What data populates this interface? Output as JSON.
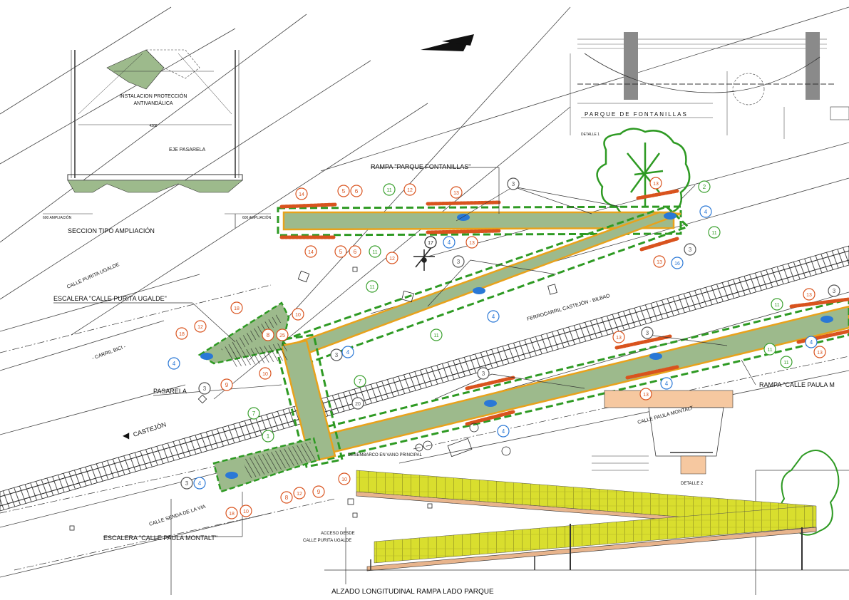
{
  "labels": {
    "section_title": "SECCION TIPO AMPLIACIÓN",
    "antivandal": "INSTALACION PROTECCIÓN ANTIVANDÁLICA",
    "antivandal_1": "INSTALACION PROTECCIÓN",
    "antivandal_2": "ANTIVANDÁLICA",
    "eje_pasarela": "EJE PASARELA",
    "ampliacion_left": "600 AMPLIACIÓN",
    "ampliacion_right": "600 AMPLIACIÓN",
    "ramp_park": "RAMPA \"PARQUE FONTANILLAS\"",
    "ramp_paula": "RAMPA \"CALLE PAULA M",
    "stair_purita": "ESCALERA \"CALLE PURITA UGALDE\"",
    "stair_paula": "ESCALERA \"CALLE PAULA MONTALT\"",
    "pasarela": "PASARELA",
    "calle_purita": "CALLE PURITA UGALDE",
    "carril_bici": "- CARRIL BICI -",
    "ferrocarril": "FERROCARRIL CASTEJÓN - BILBAO",
    "castejon": "CASTEJÓN",
    "senda_via": "CALLE SENDA DE LA VIA",
    "parque": "PARQUE DE FONTANILLAS",
    "desembarco": "DESEMBARCO EN VANO PRINCIPAL",
    "acceso_1": "ACCESO DESDE",
    "acceso_2": "CALLE PURITA UGALDE",
    "calle_paula_montalt": "CALLE PAULA MONTALT",
    "detalle2": "DETALLE 2",
    "detalle1": "DETALLE 1",
    "alzado": "ALZADO LONGITUDINAL RAMPA LADO PARQUE"
  },
  "markers": [
    {
      "id": "m14a",
      "n": "14",
      "c": "orange"
    },
    {
      "id": "m5a",
      "n": "5",
      "c": "orange"
    },
    {
      "id": "m6a",
      "n": "6",
      "c": "orange"
    },
    {
      "id": "m11a",
      "n": "11",
      "c": "green"
    },
    {
      "id": "m12a",
      "n": "12",
      "c": "orange"
    },
    {
      "id": "m13a",
      "n": "13",
      "c": "orange"
    },
    {
      "id": "m3a",
      "n": "3",
      "c": "gray"
    },
    {
      "id": "m13b",
      "n": "13",
      "c": "orange"
    },
    {
      "id": "m2",
      "n": "2",
      "c": "green"
    },
    {
      "id": "m4a",
      "n": "4",
      "c": "blue"
    },
    {
      "id": "m11b",
      "n": "11",
      "c": "green"
    },
    {
      "id": "m3b",
      "n": "3",
      "c": "gray"
    },
    {
      "id": "m13c",
      "n": "13",
      "c": "orange"
    },
    {
      "id": "m16",
      "n": "16",
      "c": "blue"
    },
    {
      "id": "m14b",
      "n": "14",
      "c": "orange"
    },
    {
      "id": "m5b",
      "n": "5",
      "c": "orange"
    },
    {
      "id": "m6b",
      "n": "6",
      "c": "orange"
    },
    {
      "id": "m11c",
      "n": "11",
      "c": "green"
    },
    {
      "id": "m12b",
      "n": "12",
      "c": "orange"
    },
    {
      "id": "m17",
      "n": "17",
      "c": "dark"
    },
    {
      "id": "m4b",
      "n": "4",
      "c": "blue"
    },
    {
      "id": "m13d",
      "n": "13",
      "c": "orange"
    },
    {
      "id": "m3c",
      "n": "3",
      "c": "gray"
    },
    {
      "id": "m11d",
      "n": "11",
      "c": "green"
    },
    {
      "id": "m4c",
      "n": "4",
      "c": "blue"
    },
    {
      "id": "m11e",
      "n": "11",
      "c": "green"
    },
    {
      "id": "m18a",
      "n": "18",
      "c": "orange"
    },
    {
      "id": "m10a",
      "n": "10",
      "c": "orange"
    },
    {
      "id": "m12c",
      "n": "12",
      "c": "orange"
    },
    {
      "id": "m8a",
      "n": "8",
      "c": "orange"
    },
    {
      "id": "m25",
      "n": "25",
      "c": "orange"
    },
    {
      "id": "m18b",
      "n": "18",
      "c": "orange"
    },
    {
      "id": "m4d",
      "n": "4",
      "c": "blue"
    },
    {
      "id": "m10b",
      "n": "10",
      "c": "orange"
    },
    {
      "id": "m9a",
      "n": "9",
      "c": "orange"
    },
    {
      "id": "m3d",
      "n": "3",
      "c": "gray"
    },
    {
      "id": "m3e",
      "n": "3",
      "c": "gray"
    },
    {
      "id": "m4e",
      "n": "4",
      "c": "blue"
    },
    {
      "id": "m7a",
      "n": "7",
      "c": "green"
    },
    {
      "id": "m20",
      "n": "20",
      "c": "gray"
    },
    {
      "id": "m7b",
      "n": "7",
      "c": "green"
    },
    {
      "id": "m1",
      "n": "1",
      "c": "green"
    },
    {
      "id": "m3f",
      "n": "3",
      "c": "gray"
    },
    {
      "id": "m4f",
      "n": "4",
      "c": "blue"
    },
    {
      "id": "m8b",
      "n": "8",
      "c": "orange"
    },
    {
      "id": "m12d",
      "n": "12",
      "c": "orange"
    },
    {
      "id": "m9b",
      "n": "9",
      "c": "orange"
    },
    {
      "id": "m18c",
      "n": "18",
      "c": "orange"
    },
    {
      "id": "m10c",
      "n": "10",
      "c": "orange"
    },
    {
      "id": "m10d",
      "n": "10",
      "c": "orange"
    },
    {
      "id": "m3g",
      "n": "3",
      "c": "gray"
    },
    {
      "id": "m4g",
      "n": "4",
      "c": "blue"
    },
    {
      "id": "m13e",
      "n": "13",
      "c": "orange"
    },
    {
      "id": "m3h",
      "n": "3",
      "c": "gray"
    },
    {
      "id": "m11f",
      "n": "11",
      "c": "green"
    },
    {
      "id": "m4h",
      "n": "4",
      "c": "blue"
    },
    {
      "id": "m13f",
      "n": "13",
      "c": "orange"
    },
    {
      "id": "m13g",
      "n": "13",
      "c": "orange"
    },
    {
      "id": "m3i",
      "n": "3",
      "c": "gray"
    },
    {
      "id": "m11g",
      "n": "11",
      "c": "green"
    },
    {
      "id": "m4i",
      "n": "4",
      "c": "blue"
    },
    {
      "id": "m13h",
      "n": "13",
      "c": "orange"
    },
    {
      "id": "m11h",
      "n": "11",
      "c": "green"
    }
  ],
  "colors": {
    "walkway_fill": "#9dba8c",
    "walkway_edge": "#e8a21c",
    "dashed_green": "#2e9a23",
    "guard_red": "#d9531e",
    "gray_mark": "#555555",
    "blue_mark": "#2a78d6",
    "green_mark": "#3aa02e",
    "orange_mark": "#d9531e",
    "fence_yellow": "#d9de2e",
    "ramp_beam": "#e8b48c"
  },
  "icons": [
    "north-arrow-icon",
    "tree-icon",
    "compass-icon",
    "bench-icon",
    "lamp-icon"
  ]
}
